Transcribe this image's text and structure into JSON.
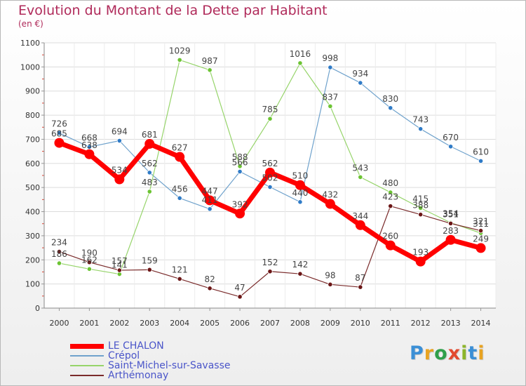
{
  "header": {
    "title": "Evolution du Montant de la Dette par Habitant",
    "unit": "(en €)"
  },
  "logo": {
    "text": "Proxiti",
    "colors": [
      "#3b8fd6",
      "#e8a321",
      "#2f9f4a",
      "#e2492f",
      "#8cb52a",
      "#3b8fd6",
      "#e8a321"
    ]
  },
  "chart_data": {
    "type": "line",
    "ylabel": "(en €)",
    "ylim": [
      0,
      1100
    ],
    "yticks": [
      0,
      100,
      200,
      300,
      400,
      500,
      600,
      700,
      800,
      900,
      1000,
      1100
    ],
    "grid": true,
    "legend_position": "bottom-left",
    "categories": [
      "2000",
      "2001",
      "2002",
      "2003",
      "2004",
      "2005",
      "2006",
      "2007",
      "2008",
      "2009",
      "2010",
      "2011",
      "2012",
      "2013",
      "2014"
    ],
    "series": [
      {
        "name": "LE CHALON",
        "color": "#ff0000",
        "width": 7,
        "marker": 7,
        "values": [
          685,
          638,
          534,
          681,
          627,
          447,
          392,
          562,
          510,
          432,
          344,
          260,
          193,
          283,
          249
        ]
      },
      {
        "name": "Crépol",
        "color": "#6fa2cc",
        "width": 1.2,
        "marker": 3.2,
        "markerColor": "#2f7bc7",
        "values": [
          726,
          668,
          694,
          562,
          456,
          411,
          566,
          502,
          440,
          998,
          934,
          830,
          743,
          670,
          610
        ]
      },
      {
        "name": "Saint-Michel-sur-Savasse",
        "color": "#96d46a",
        "width": 1.2,
        "marker": 3.2,
        "markerColor": "#6cc433",
        "values": [
          186,
          162,
          141,
          483,
          1029,
          987,
          588,
          785,
          1016,
          837,
          543,
          480,
          415,
          354,
          311
        ]
      },
      {
        "name": "Arthémonay",
        "color": "#7a2b2b",
        "width": 1.2,
        "marker": 3.2,
        "markerColor": "#6b1616",
        "values": [
          234,
          190,
          157,
          159,
          121,
          82,
          47,
          152,
          142,
          98,
          87,
          423,
          388,
          351,
          321
        ]
      }
    ]
  }
}
